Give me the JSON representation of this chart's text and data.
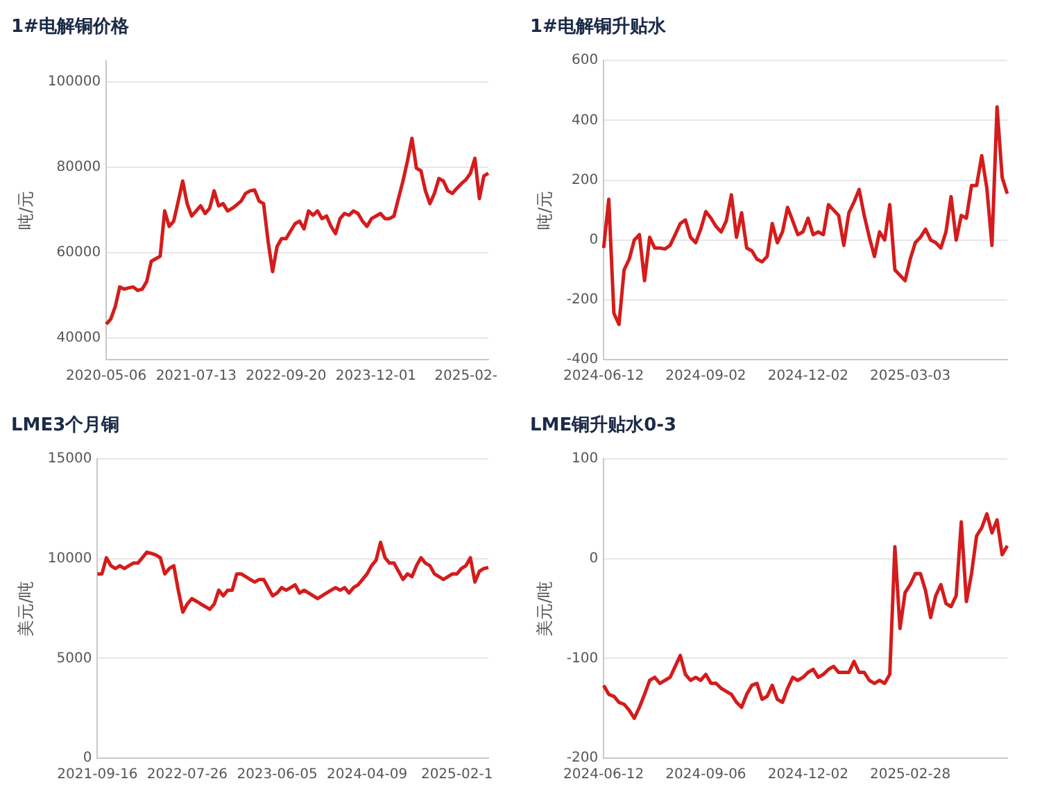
{
  "chart_data": [
    {
      "type": "line",
      "title": "1#电解铜价格",
      "ylabel": "吨/元",
      "color": "#d41c1c",
      "marker": "none",
      "grid": "y",
      "legend": false,
      "ylim": [
        35000,
        105000
      ],
      "yticks": [
        40000,
        60000,
        80000,
        100000
      ],
      "categories": [
        "2020-05-06",
        null,
        null,
        null,
        null,
        null,
        null,
        null,
        null,
        null,
        null,
        null,
        null,
        null,
        null,
        null,
        null,
        null,
        null,
        null,
        "2021-07-13",
        null,
        null,
        null,
        null,
        null,
        null,
        null,
        null,
        null,
        null,
        null,
        null,
        null,
        null,
        null,
        null,
        null,
        null,
        null,
        "2022-09-20",
        null,
        null,
        null,
        null,
        null,
        null,
        null,
        null,
        null,
        null,
        null,
        null,
        null,
        null,
        null,
        null,
        null,
        null,
        null,
        "2023-12-01",
        null,
        null,
        null,
        null,
        null,
        null,
        null,
        null,
        null,
        null,
        null,
        null,
        null,
        null,
        null,
        null,
        null,
        null,
        null,
        "2025-02-",
        null,
        null,
        null,
        null,
        null
      ],
      "values": [
        43300,
        44500,
        47400,
        52000,
        51500,
        51800,
        52000,
        51200,
        51500,
        53300,
        58000,
        58600,
        59200,
        69800,
        66200,
        67400,
        72000,
        76800,
        71500,
        68600,
        69800,
        71000,
        69200,
        70400,
        74500,
        71000,
        71500,
        69800,
        70400,
        71200,
        72100,
        73900,
        74500,
        74700,
        72100,
        71500,
        62700,
        55600,
        61500,
        63300,
        63300,
        65100,
        66800,
        67400,
        65600,
        69800,
        68800,
        69800,
        68000,
        68600,
        66200,
        64500,
        68000,
        69200,
        68800,
        69800,
        69200,
        67400,
        66200,
        68000,
        68600,
        69200,
        68000,
        68000,
        68600,
        72700,
        76800,
        81500,
        86800,
        79800,
        79200,
        74500,
        71500,
        73900,
        77400,
        76800,
        74500,
        73900,
        75100,
        76200,
        77100,
        78600,
        82100,
        72700,
        78000,
        78600
      ]
    },
    {
      "type": "line",
      "title": "1#电解铜升贴水",
      "ylabel": "吨/元",
      "color": "#d41c1c",
      "marker": "none",
      "grid": "y",
      "legend": false,
      "ylim": [
        -400,
        600
      ],
      "yticks": [
        -400,
        -200,
        0,
        200,
        400,
        600
      ],
      "categories": [
        "2024-06-12",
        null,
        null,
        null,
        null,
        null,
        null,
        null,
        null,
        null,
        null,
        null,
        null,
        null,
        null,
        null,
        null,
        null,
        null,
        null,
        "2024-09-02",
        null,
        null,
        null,
        null,
        null,
        null,
        null,
        null,
        null,
        null,
        null,
        null,
        null,
        null,
        null,
        null,
        null,
        null,
        null,
        "2024-12-02",
        null,
        null,
        null,
        null,
        null,
        null,
        null,
        null,
        null,
        null,
        null,
        null,
        null,
        null,
        null,
        null,
        null,
        null,
        null,
        "2025-03-03",
        null,
        null,
        null,
        null,
        null,
        null,
        null,
        null,
        null,
        null,
        null,
        null,
        null,
        null,
        null,
        null,
        null,
        null,
        null
      ],
      "values": [
        -27,
        136,
        -245,
        -282,
        -100,
        -64,
        0,
        18,
        -136,
        9,
        -27,
        -27,
        -30,
        -18,
        18,
        55,
        67,
        9,
        -9,
        36,
        95,
        73,
        45,
        27,
        64,
        151,
        9,
        91,
        -27,
        -36,
        -64,
        -73,
        -55,
        55,
        -9,
        27,
        109,
        64,
        18,
        27,
        73,
        18,
        27,
        18,
        118,
        100,
        82,
        -18,
        91,
        127,
        169,
        82,
        9,
        -55,
        27,
        0,
        118,
        -100,
        -118,
        -136,
        -64,
        -9,
        9,
        36,
        0,
        -9,
        -27,
        27,
        145,
        0,
        82,
        73,
        182,
        182,
        282,
        173,
        -18,
        445,
        209,
        155
      ]
    },
    {
      "type": "line",
      "title": "LME3个月铜",
      "ylabel": "美元/吨",
      "color": "#d41c1c",
      "marker": "none",
      "grid": "y",
      "legend": false,
      "ylim": [
        0,
        15000
      ],
      "yticks": [
        0,
        5000,
        10000,
        15000
      ],
      "categories": [
        "2021-09-16",
        null,
        null,
        null,
        null,
        null,
        null,
        null,
        null,
        null,
        null,
        null,
        null,
        null,
        null,
        null,
        null,
        null,
        null,
        null,
        "2022-07-26",
        null,
        null,
        null,
        null,
        null,
        null,
        null,
        null,
        null,
        null,
        null,
        null,
        null,
        null,
        null,
        null,
        null,
        null,
        null,
        "2023-06-05",
        null,
        null,
        null,
        null,
        null,
        null,
        null,
        null,
        null,
        null,
        null,
        null,
        null,
        null,
        null,
        null,
        null,
        null,
        null,
        "2024-04-09",
        null,
        null,
        null,
        null,
        null,
        null,
        null,
        null,
        null,
        null,
        null,
        null,
        null,
        null,
        null,
        null,
        null,
        null,
        null,
        "2025-02-1",
        null,
        null,
        null,
        null,
        null,
        null,
        null
      ],
      "values": [
        9240,
        9240,
        10050,
        9650,
        9510,
        9650,
        9510,
        9650,
        9780,
        9780,
        10050,
        10330,
        10270,
        10190,
        10050,
        9240,
        9510,
        9650,
        8420,
        7320,
        7730,
        8000,
        7870,
        7730,
        7600,
        7460,
        7730,
        8420,
        8140,
        8420,
        8420,
        9240,
        9240,
        9100,
        8960,
        8830,
        8960,
        8960,
        8550,
        8140,
        8280,
        8550,
        8420,
        8550,
        8690,
        8280,
        8420,
        8280,
        8140,
        8000,
        8140,
        8280,
        8420,
        8550,
        8420,
        8550,
        8280,
        8550,
        8690,
        8960,
        9240,
        9650,
        9920,
        10820,
        10050,
        9780,
        9780,
        9370,
        8960,
        9240,
        9100,
        9650,
        10050,
        9780,
        9650,
        9240,
        9100,
        8960,
        9100,
        9240,
        9240,
        9510,
        9650,
        10050,
        8830,
        9370,
        9510,
        9560
      ]
    },
    {
      "type": "line",
      "title": "LME铜升贴水0-3",
      "ylabel": "美元/吨",
      "color": "#d41c1c",
      "marker": "none",
      "grid": "y",
      "legend": false,
      "ylim": [
        -200,
        100
      ],
      "yticks": [
        -200,
        -100,
        0,
        100
      ],
      "categories": [
        "2024-06-12",
        null,
        null,
        null,
        null,
        null,
        null,
        null,
        null,
        null,
        null,
        null,
        null,
        null,
        null,
        null,
        null,
        null,
        null,
        null,
        "2024-09-06",
        null,
        null,
        null,
        null,
        null,
        null,
        null,
        null,
        null,
        null,
        null,
        null,
        null,
        null,
        null,
        null,
        null,
        null,
        null,
        "2024-12-02",
        null,
        null,
        null,
        null,
        null,
        null,
        null,
        null,
        null,
        null,
        null,
        null,
        null,
        null,
        null,
        null,
        null,
        null,
        null,
        "2025-02-28",
        null,
        null,
        null,
        null,
        null,
        null,
        null,
        null,
        null,
        null,
        null,
        null,
        null,
        null,
        null,
        null,
        null,
        null,
        null
      ],
      "values": [
        -127,
        -136,
        -138,
        -144,
        -146,
        -152,
        -160,
        -149,
        -136,
        -122,
        -119,
        -125,
        -122,
        -119,
        -108,
        -97,
        -116,
        -122,
        -119,
        -122,
        -116,
        -125,
        -125,
        -130,
        -133,
        -136,
        -144,
        -149,
        -136,
        -127,
        -125,
        -141,
        -138,
        -127,
        -141,
        -144,
        -130,
        -119,
        -122,
        -119,
        -114,
        -111,
        -119,
        -116,
        -111,
        -108,
        -114,
        -114,
        -114,
        -103,
        -114,
        -114,
        -122,
        -125,
        -122,
        -125,
        -116,
        12,
        -70,
        -34,
        -26,
        -15,
        -15,
        -32,
        -59,
        -37,
        -26,
        -45,
        -48,
        -37,
        37,
        -43,
        -15,
        23,
        31,
        45,
        26,
        39,
        4,
        13
      ]
    }
  ]
}
